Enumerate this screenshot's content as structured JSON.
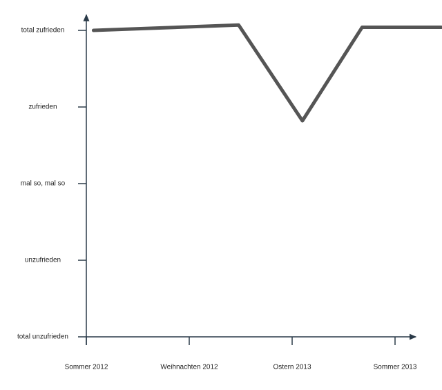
{
  "chart_data": {
    "type": "line",
    "x": [
      0.07,
      1.48,
      2.1,
      2.68,
      3.45
    ],
    "values": [
      4.0,
      4.07,
      2.82,
      4.04,
      4.04
    ],
    "color": "#555555",
    "xlim": [
      0,
      3.2
    ],
    "xticks": [
      {
        "value": 0,
        "label": "Sommer 2012"
      },
      {
        "value": 1,
        "label": "Weihnachten 2012"
      },
      {
        "value": 2,
        "label": "Ostern 2013"
      },
      {
        "value": 3,
        "label": "Sommer 2013"
      }
    ],
    "ylim": [
      0,
      4.2
    ],
    "yticks": [
      {
        "value": 0,
        "label": "total unzufrieden"
      },
      {
        "value": 1,
        "label": "unzufrieden"
      },
      {
        "value": 2,
        "label": "mal so, mal so"
      },
      {
        "value": 3,
        "label": "zufrieden"
      },
      {
        "value": 4,
        "label": "total zufrieden"
      }
    ]
  }
}
